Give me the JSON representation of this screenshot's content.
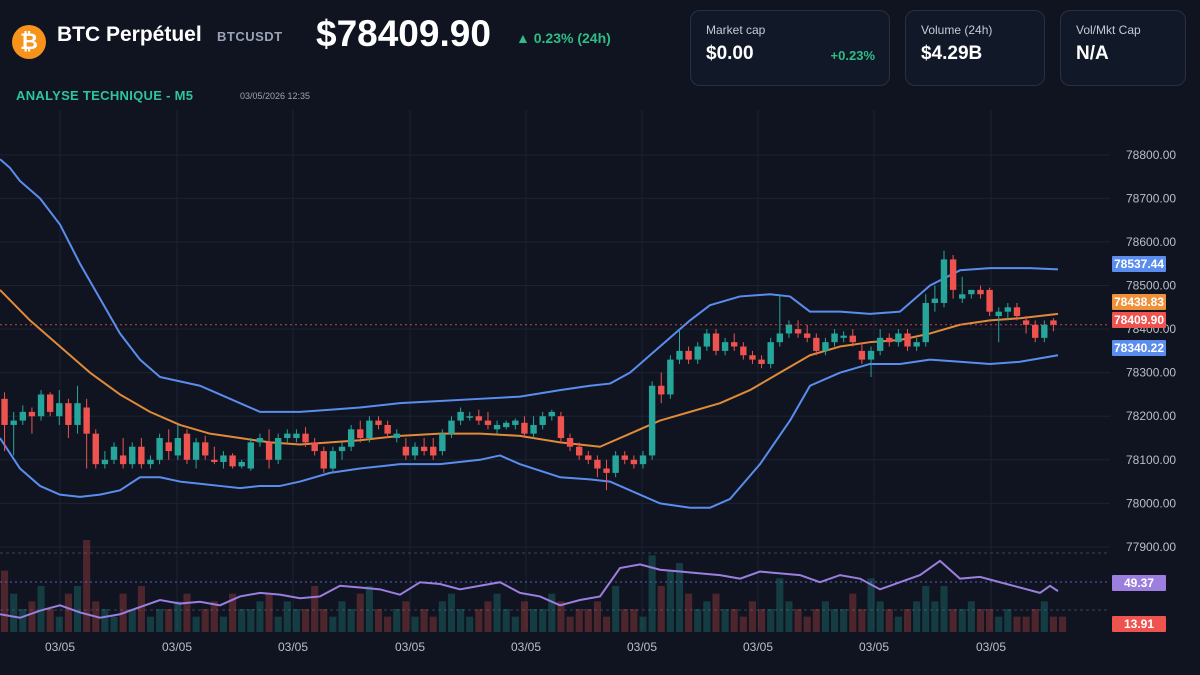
{
  "header": {
    "coin_symbol": "₿",
    "pair_name": "BTC Perpétuel",
    "ticker": "BTCUSDT",
    "price": "$78409.90",
    "change_24h": "▲ 0.23% (24h)",
    "subtitle": "ANALYSE TECHNIQUE - M5",
    "timestamp": "03/05/2026 12:35"
  },
  "stats": [
    {
      "label": "Market cap",
      "value": "$0.00",
      "change": "+0.23%"
    },
    {
      "label": "Volume (24h)",
      "value": "$4.29B",
      "change": ""
    },
    {
      "label": "Vol/Mkt Cap",
      "value": "N/A",
      "change": ""
    }
  ],
  "colors": {
    "background": "#0f1420",
    "up": "#26a69a",
    "down": "#ef5350",
    "bollinger": "#5b8def",
    "ma": "#e08a3a",
    "rsi": "#9b7ede",
    "grid": "#1c2232"
  },
  "chart_data": {
    "type": "candlestick",
    "y_ticks": [
      78800,
      78700,
      78600,
      78500,
      78400,
      78300,
      78200,
      78100,
      78000,
      77900
    ],
    "y_tick_labels": [
      "78800.00",
      "78700.00",
      "78600.00",
      "78500.00",
      "78400.00",
      "78300.00",
      "78200.00",
      "78100.00",
      "78000.00",
      "77900.00"
    ],
    "ylim": [
      77870,
      78880
    ],
    "x_tick_labels": [
      "03/05",
      "03/05",
      "03/05",
      "03/05",
      "03/05",
      "03/05",
      "03/05",
      "03/05",
      "03/05"
    ],
    "candles": [
      [
        78240,
        78255,
        78120,
        78180
      ],
      [
        78180,
        78210,
        78110,
        78190
      ],
      [
        78190,
        78225,
        78180,
        78210
      ],
      [
        78210,
        78220,
        78160,
        78200
      ],
      [
        78200,
        78260,
        78190,
        78250
      ],
      [
        78250,
        78255,
        78200,
        78210
      ],
      [
        78200,
        78260,
        78180,
        78230
      ],
      [
        78230,
        78240,
        78150,
        78180
      ],
      [
        78180,
        78270,
        78160,
        78230
      ],
      [
        78220,
        78240,
        78080,
        78160
      ],
      [
        78160,
        78170,
        78080,
        78090
      ],
      [
        78090,
        78120,
        78080,
        78100
      ],
      [
        78100,
        78140,
        78090,
        78130
      ],
      [
        78110,
        78150,
        78080,
        78090
      ],
      [
        78090,
        78140,
        78080,
        78130
      ],
      [
        78130,
        78150,
        78080,
        78090
      ],
      [
        78090,
        78110,
        78080,
        78100
      ],
      [
        78100,
        78160,
        78090,
        78150
      ],
      [
        78140,
        78170,
        78100,
        78120
      ],
      [
        78110,
        78180,
        78100,
        78150
      ],
      [
        78160,
        78170,
        78090,
        78100
      ],
      [
        78100,
        78150,
        78080,
        78140
      ],
      [
        78140,
        78155,
        78100,
        78110
      ],
      [
        78100,
        78130,
        78090,
        78095
      ],
      [
        78095,
        78120,
        78080,
        78110
      ],
      [
        78110,
        78115,
        78080,
        78085
      ],
      [
        78085,
        78100,
        78080,
        78095
      ],
      [
        78080,
        78150,
        78075,
        78140
      ],
      [
        78140,
        78160,
        78130,
        78150
      ],
      [
        78140,
        78170,
        78080,
        78100
      ],
      [
        78100,
        78160,
        78090,
        78150
      ],
      [
        78150,
        78170,
        78140,
        78160
      ],
      [
        78150,
        78170,
        78140,
        78160
      ],
      [
        78160,
        78175,
        78130,
        78140
      ],
      [
        78140,
        78150,
        78110,
        78120
      ],
      [
        78120,
        78130,
        78070,
        78080
      ],
      [
        78080,
        78130,
        78070,
        78120
      ],
      [
        78120,
        78140,
        78100,
        78130
      ],
      [
        78130,
        78180,
        78120,
        78170
      ],
      [
        78170,
        78190,
        78140,
        78150
      ],
      [
        78150,
        78200,
        78140,
        78190
      ],
      [
        78190,
        78200,
        78170,
        78180
      ],
      [
        78180,
        78190,
        78150,
        78160
      ],
      [
        78150,
        78170,
        78140,
        78160
      ],
      [
        78130,
        78150,
        78100,
        78110
      ],
      [
        78110,
        78140,
        78100,
        78130
      ],
      [
        78130,
        78150,
        78110,
        78120
      ],
      [
        78130,
        78150,
        78100,
        78110
      ],
      [
        78120,
        78170,
        78110,
        78160
      ],
      [
        78160,
        78200,
        78150,
        78190
      ],
      [
        78190,
        78220,
        78180,
        78210
      ],
      [
        78200,
        78210,
        78190,
        78200
      ],
      [
        78200,
        78215,
        78180,
        78190
      ],
      [
        78190,
        78210,
        78170,
        78180
      ],
      [
        78170,
        78190,
        78160,
        78180
      ],
      [
        78175,
        78190,
        78170,
        78185
      ],
      [
        78180,
        78195,
        78170,
        78190
      ],
      [
        78185,
        78200,
        78150,
        78160
      ],
      [
        78160,
        78200,
        78150,
        78180
      ],
      [
        78180,
        78210,
        78170,
        78200
      ],
      [
        78200,
        78215,
        78190,
        78210
      ],
      [
        78200,
        78210,
        78140,
        78150
      ],
      [
        78150,
        78160,
        78120,
        78130
      ],
      [
        78130,
        78140,
        78100,
        78110
      ],
      [
        78110,
        78120,
        78090,
        78100
      ],
      [
        78100,
        78110,
        78060,
        78080
      ],
      [
        78080,
        78100,
        78030,
        78070
      ],
      [
        78070,
        78120,
        78060,
        78110
      ],
      [
        78110,
        78120,
        78090,
        78100
      ],
      [
        78100,
        78110,
        78080,
        78090
      ],
      [
        78090,
        78120,
        78080,
        78110
      ],
      [
        78110,
        78280,
        78100,
        78270
      ],
      [
        78270,
        78300,
        78230,
        78250
      ],
      [
        78250,
        78340,
        78240,
        78330
      ],
      [
        78330,
        78400,
        78320,
        78350
      ],
      [
        78350,
        78360,
        78320,
        78330
      ],
      [
        78330,
        78370,
        78320,
        78360
      ],
      [
        78360,
        78400,
        78350,
        78390
      ],
      [
        78390,
        78400,
        78340,
        78350
      ],
      [
        78350,
        78380,
        78340,
        78370
      ],
      [
        78370,
        78390,
        78350,
        78360
      ],
      [
        78360,
        78370,
        78330,
        78340
      ],
      [
        78340,
        78350,
        78320,
        78330
      ],
      [
        78330,
        78340,
        78310,
        78320
      ],
      [
        78320,
        78380,
        78310,
        78370
      ],
      [
        78370,
        78480,
        78360,
        78390
      ],
      [
        78390,
        78420,
        78380,
        78410
      ],
      [
        78400,
        78420,
        78380,
        78390
      ],
      [
        78390,
        78410,
        78370,
        78380
      ],
      [
        78380,
        78390,
        78340,
        78350
      ],
      [
        78350,
        78380,
        78340,
        78370
      ],
      [
        78370,
        78400,
        78360,
        78390
      ],
      [
        78380,
        78395,
        78370,
        78385
      ],
      [
        78385,
        78400,
        78360,
        78370
      ],
      [
        78350,
        78370,
        78320,
        78330
      ],
      [
        78330,
        78360,
        78290,
        78350
      ],
      [
        78350,
        78400,
        78340,
        78380
      ],
      [
        78380,
        78390,
        78360,
        78370
      ],
      [
        78370,
        78400,
        78360,
        78390
      ],
      [
        78390,
        78400,
        78350,
        78360
      ],
      [
        78360,
        78380,
        78350,
        78370
      ],
      [
        78370,
        78480,
        78360,
        78460
      ],
      [
        78460,
        78500,
        78440,
        78470
      ],
      [
        78460,
        78580,
        78450,
        78560
      ],
      [
        78560,
        78570,
        78470,
        78490
      ],
      [
        78470,
        78520,
        78460,
        78480
      ],
      [
        78480,
        78490,
        78470,
        78490
      ],
      [
        78490,
        78500,
        78470,
        78480
      ],
      [
        78490,
        78495,
        78430,
        78440
      ],
      [
        78430,
        78450,
        78370,
        78440
      ],
      [
        78440,
        78460,
        78420,
        78450
      ],
      [
        78450,
        78460,
        78420,
        78430
      ],
      [
        78420,
        78430,
        78390,
        78410
      ],
      [
        78410,
        78420,
        78370,
        78380
      ],
      [
        78380,
        78420,
        78370,
        78410
      ],
      [
        78420,
        78425,
        78395,
        78409.9
      ]
    ],
    "indicators": {
      "bollinger_upper_label": "78537.44",
      "ma_label": "78438.83",
      "last_price_label": "78409.90",
      "bollinger_lower_label": "78340.22",
      "rsi_label": "49.37",
      "volume_label": "13.91"
    },
    "bollinger_upper": [
      [
        0,
        78790
      ],
      [
        10,
        78770
      ],
      [
        20,
        78740
      ],
      [
        40,
        78700
      ],
      [
        60,
        78640
      ],
      [
        80,
        78550
      ],
      [
        100,
        78470
      ],
      [
        120,
        78390
      ],
      [
        140,
        78330
      ],
      [
        160,
        78290
      ],
      [
        180,
        78280
      ],
      [
        200,
        78270
      ],
      [
        220,
        78250
      ],
      [
        240,
        78230
      ],
      [
        260,
        78210
      ],
      [
        280,
        78210
      ],
      [
        300,
        78210
      ],
      [
        330,
        78215
      ],
      [
        360,
        78220
      ],
      [
        400,
        78230
      ],
      [
        440,
        78235
      ],
      [
        480,
        78240
      ],
      [
        520,
        78245
      ],
      [
        560,
        78260
      ],
      [
        590,
        78270
      ],
      [
        610,
        78275
      ],
      [
        630,
        78300
      ],
      [
        660,
        78360
      ],
      [
        690,
        78420
      ],
      [
        710,
        78455
      ],
      [
        740,
        78475
      ],
      [
        770,
        78480
      ],
      [
        790,
        78475
      ],
      [
        810,
        78440
      ],
      [
        840,
        78440
      ],
      [
        870,
        78435
      ],
      [
        900,
        78440
      ],
      [
        930,
        78500
      ],
      [
        960,
        78535
      ],
      [
        990,
        78540
      ],
      [
        1030,
        78540
      ],
      [
        1058,
        78537
      ]
    ],
    "bollinger_lower": [
      [
        0,
        78150
      ],
      [
        20,
        78080
      ],
      [
        40,
        78040
      ],
      [
        60,
        78020
      ],
      [
        80,
        78015
      ],
      [
        100,
        78020
      ],
      [
        120,
        78030
      ],
      [
        140,
        78060
      ],
      [
        160,
        78060
      ],
      [
        180,
        78050
      ],
      [
        200,
        78045
      ],
      [
        220,
        78040
      ],
      [
        240,
        78035
      ],
      [
        260,
        78040
      ],
      [
        280,
        78040
      ],
      [
        300,
        78050
      ],
      [
        330,
        78070
      ],
      [
        360,
        78080
      ],
      [
        400,
        78090
      ],
      [
        440,
        78090
      ],
      [
        480,
        78100
      ],
      [
        500,
        78110
      ],
      [
        520,
        78090
      ],
      [
        560,
        78060
      ],
      [
        590,
        78055
      ],
      [
        610,
        78050
      ],
      [
        630,
        78030
      ],
      [
        660,
        78000
      ],
      [
        690,
        77990
      ],
      [
        710,
        77990
      ],
      [
        730,
        78010
      ],
      [
        760,
        78090
      ],
      [
        790,
        78190
      ],
      [
        810,
        78270
      ],
      [
        840,
        78300
      ],
      [
        870,
        78320
      ],
      [
        900,
        78320
      ],
      [
        930,
        78330
      ],
      [
        960,
        78325
      ],
      [
        990,
        78320
      ],
      [
        1020,
        78325
      ],
      [
        1058,
        78340
      ]
    ],
    "moving_average": [
      [
        0,
        78490
      ],
      [
        30,
        78420
      ],
      [
        60,
        78360
      ],
      [
        90,
        78300
      ],
      [
        120,
        78250
      ],
      [
        150,
        78210
      ],
      [
        180,
        78180
      ],
      [
        210,
        78160
      ],
      [
        240,
        78150
      ],
      [
        270,
        78140
      ],
      [
        300,
        78135
      ],
      [
        330,
        78140
      ],
      [
        360,
        78145
      ],
      [
        400,
        78155
      ],
      [
        440,
        78160
      ],
      [
        480,
        78160
      ],
      [
        520,
        78155
      ],
      [
        560,
        78140
      ],
      [
        600,
        78130
      ],
      [
        630,
        78160
      ],
      [
        660,
        78190
      ],
      [
        690,
        78210
      ],
      [
        720,
        78230
      ],
      [
        750,
        78260
      ],
      [
        780,
        78300
      ],
      [
        810,
        78340
      ],
      [
        840,
        78360
      ],
      [
        870,
        78370
      ],
      [
        900,
        78375
      ],
      [
        930,
        78390
      ],
      [
        960,
        78410
      ],
      [
        990,
        78420
      ],
      [
        1020,
        78425
      ],
      [
        1058,
        78435
      ]
    ],
    "rsi": [
      [
        0,
        40
      ],
      [
        20,
        38
      ],
      [
        40,
        42
      ],
      [
        60,
        45
      ],
      [
        80,
        41
      ],
      [
        100,
        38
      ],
      [
        120,
        40
      ],
      [
        140,
        44
      ],
      [
        160,
        48
      ],
      [
        180,
        46
      ],
      [
        200,
        47
      ],
      [
        220,
        45
      ],
      [
        240,
        50
      ],
      [
        260,
        52
      ],
      [
        280,
        51
      ],
      [
        300,
        49
      ],
      [
        320,
        50
      ],
      [
        340,
        56
      ],
      [
        360,
        55
      ],
      [
        380,
        54
      ],
      [
        400,
        51
      ],
      [
        420,
        58
      ],
      [
        440,
        57
      ],
      [
        460,
        54
      ],
      [
        480,
        56
      ],
      [
        500,
        58
      ],
      [
        520,
        52
      ],
      [
        540,
        50
      ],
      [
        560,
        45
      ],
      [
        580,
        48
      ],
      [
        600,
        50
      ],
      [
        620,
        66
      ],
      [
        640,
        68
      ],
      [
        660,
        65
      ],
      [
        680,
        64
      ],
      [
        700,
        63
      ],
      [
        720,
        62
      ],
      [
        740,
        60
      ],
      [
        760,
        64
      ],
      [
        780,
        63
      ],
      [
        800,
        62
      ],
      [
        820,
        58
      ],
      [
        840,
        62
      ],
      [
        860,
        60
      ],
      [
        880,
        54
      ],
      [
        900,
        58
      ],
      [
        920,
        62
      ],
      [
        940,
        70
      ],
      [
        960,
        60
      ],
      [
        980,
        61
      ],
      [
        1000,
        58
      ],
      [
        1020,
        55
      ],
      [
        1040,
        52
      ],
      [
        1050,
        56
      ],
      [
        1058,
        53
      ]
    ],
    "volume": [
      8,
      5,
      3,
      4,
      6,
      3,
      2,
      5,
      6,
      12,
      4,
      3,
      2,
      5,
      3,
      6,
      2,
      3,
      3,
      4,
      5,
      2,
      3,
      4,
      2,
      5,
      3,
      3,
      4,
      5,
      2,
      4,
      3,
      3,
      6,
      3,
      2,
      4,
      3,
      5,
      6,
      3,
      2,
      3,
      4,
      2,
      3,
      2,
      4,
      5,
      3,
      2,
      3,
      4,
      5,
      3,
      2,
      4,
      3,
      3,
      5,
      4,
      2,
      3,
      3,
      4,
      2,
      6,
      3,
      3,
      2,
      10,
      6,
      8,
      9,
      5,
      3,
      4,
      5,
      3,
      3,
      2,
      4,
      3,
      3,
      7,
      4,
      3,
      2,
      3,
      4,
      3,
      3,
      5,
      3,
      7,
      4,
      3,
      2,
      3,
      4,
      6,
      4,
      6,
      3,
      3,
      4,
      3,
      3,
      2,
      3,
      2,
      2,
      3,
      4,
      2,
      2
    ]
  }
}
